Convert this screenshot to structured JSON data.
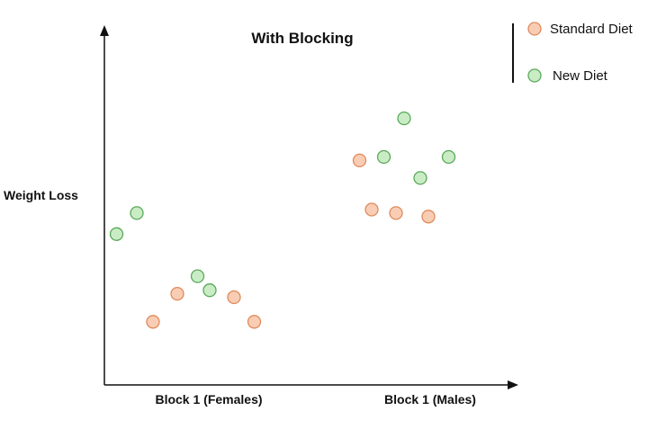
{
  "chart_data": {
    "type": "scatter",
    "title": "With Blocking",
    "ylabel": "Weight Loss",
    "xlabel": "",
    "categories": [
      "Block 1 (Females)",
      "Block 1 (Males)"
    ],
    "xlim": [
      0,
      10
    ],
    "ylim": [
      0,
      10
    ],
    "grid": false,
    "legend_position": "top-right",
    "series": [
      {
        "name": "Standard Diet",
        "color": "#f8cdb4",
        "stroke": "#e08a5c",
        "points": [
          {
            "x": 1.2,
            "y": 1.8
          },
          {
            "x": 1.8,
            "y": 2.6
          },
          {
            "x": 3.2,
            "y": 2.5
          },
          {
            "x": 3.7,
            "y": 1.8
          },
          {
            "x": 6.3,
            "y": 6.4
          },
          {
            "x": 6.6,
            "y": 5.0
          },
          {
            "x": 7.2,
            "y": 4.9
          },
          {
            "x": 8.0,
            "y": 4.8
          }
        ]
      },
      {
        "name": "New Diet",
        "color": "#c9ecc5",
        "stroke": "#5aa95a",
        "points": [
          {
            "x": 0.3,
            "y": 4.3
          },
          {
            "x": 0.8,
            "y": 4.9
          },
          {
            "x": 2.3,
            "y": 3.1
          },
          {
            "x": 2.6,
            "y": 2.7
          },
          {
            "x": 6.9,
            "y": 6.5
          },
          {
            "x": 7.4,
            "y": 7.6
          },
          {
            "x": 7.8,
            "y": 5.9
          },
          {
            "x": 8.5,
            "y": 6.5
          }
        ]
      }
    ]
  }
}
